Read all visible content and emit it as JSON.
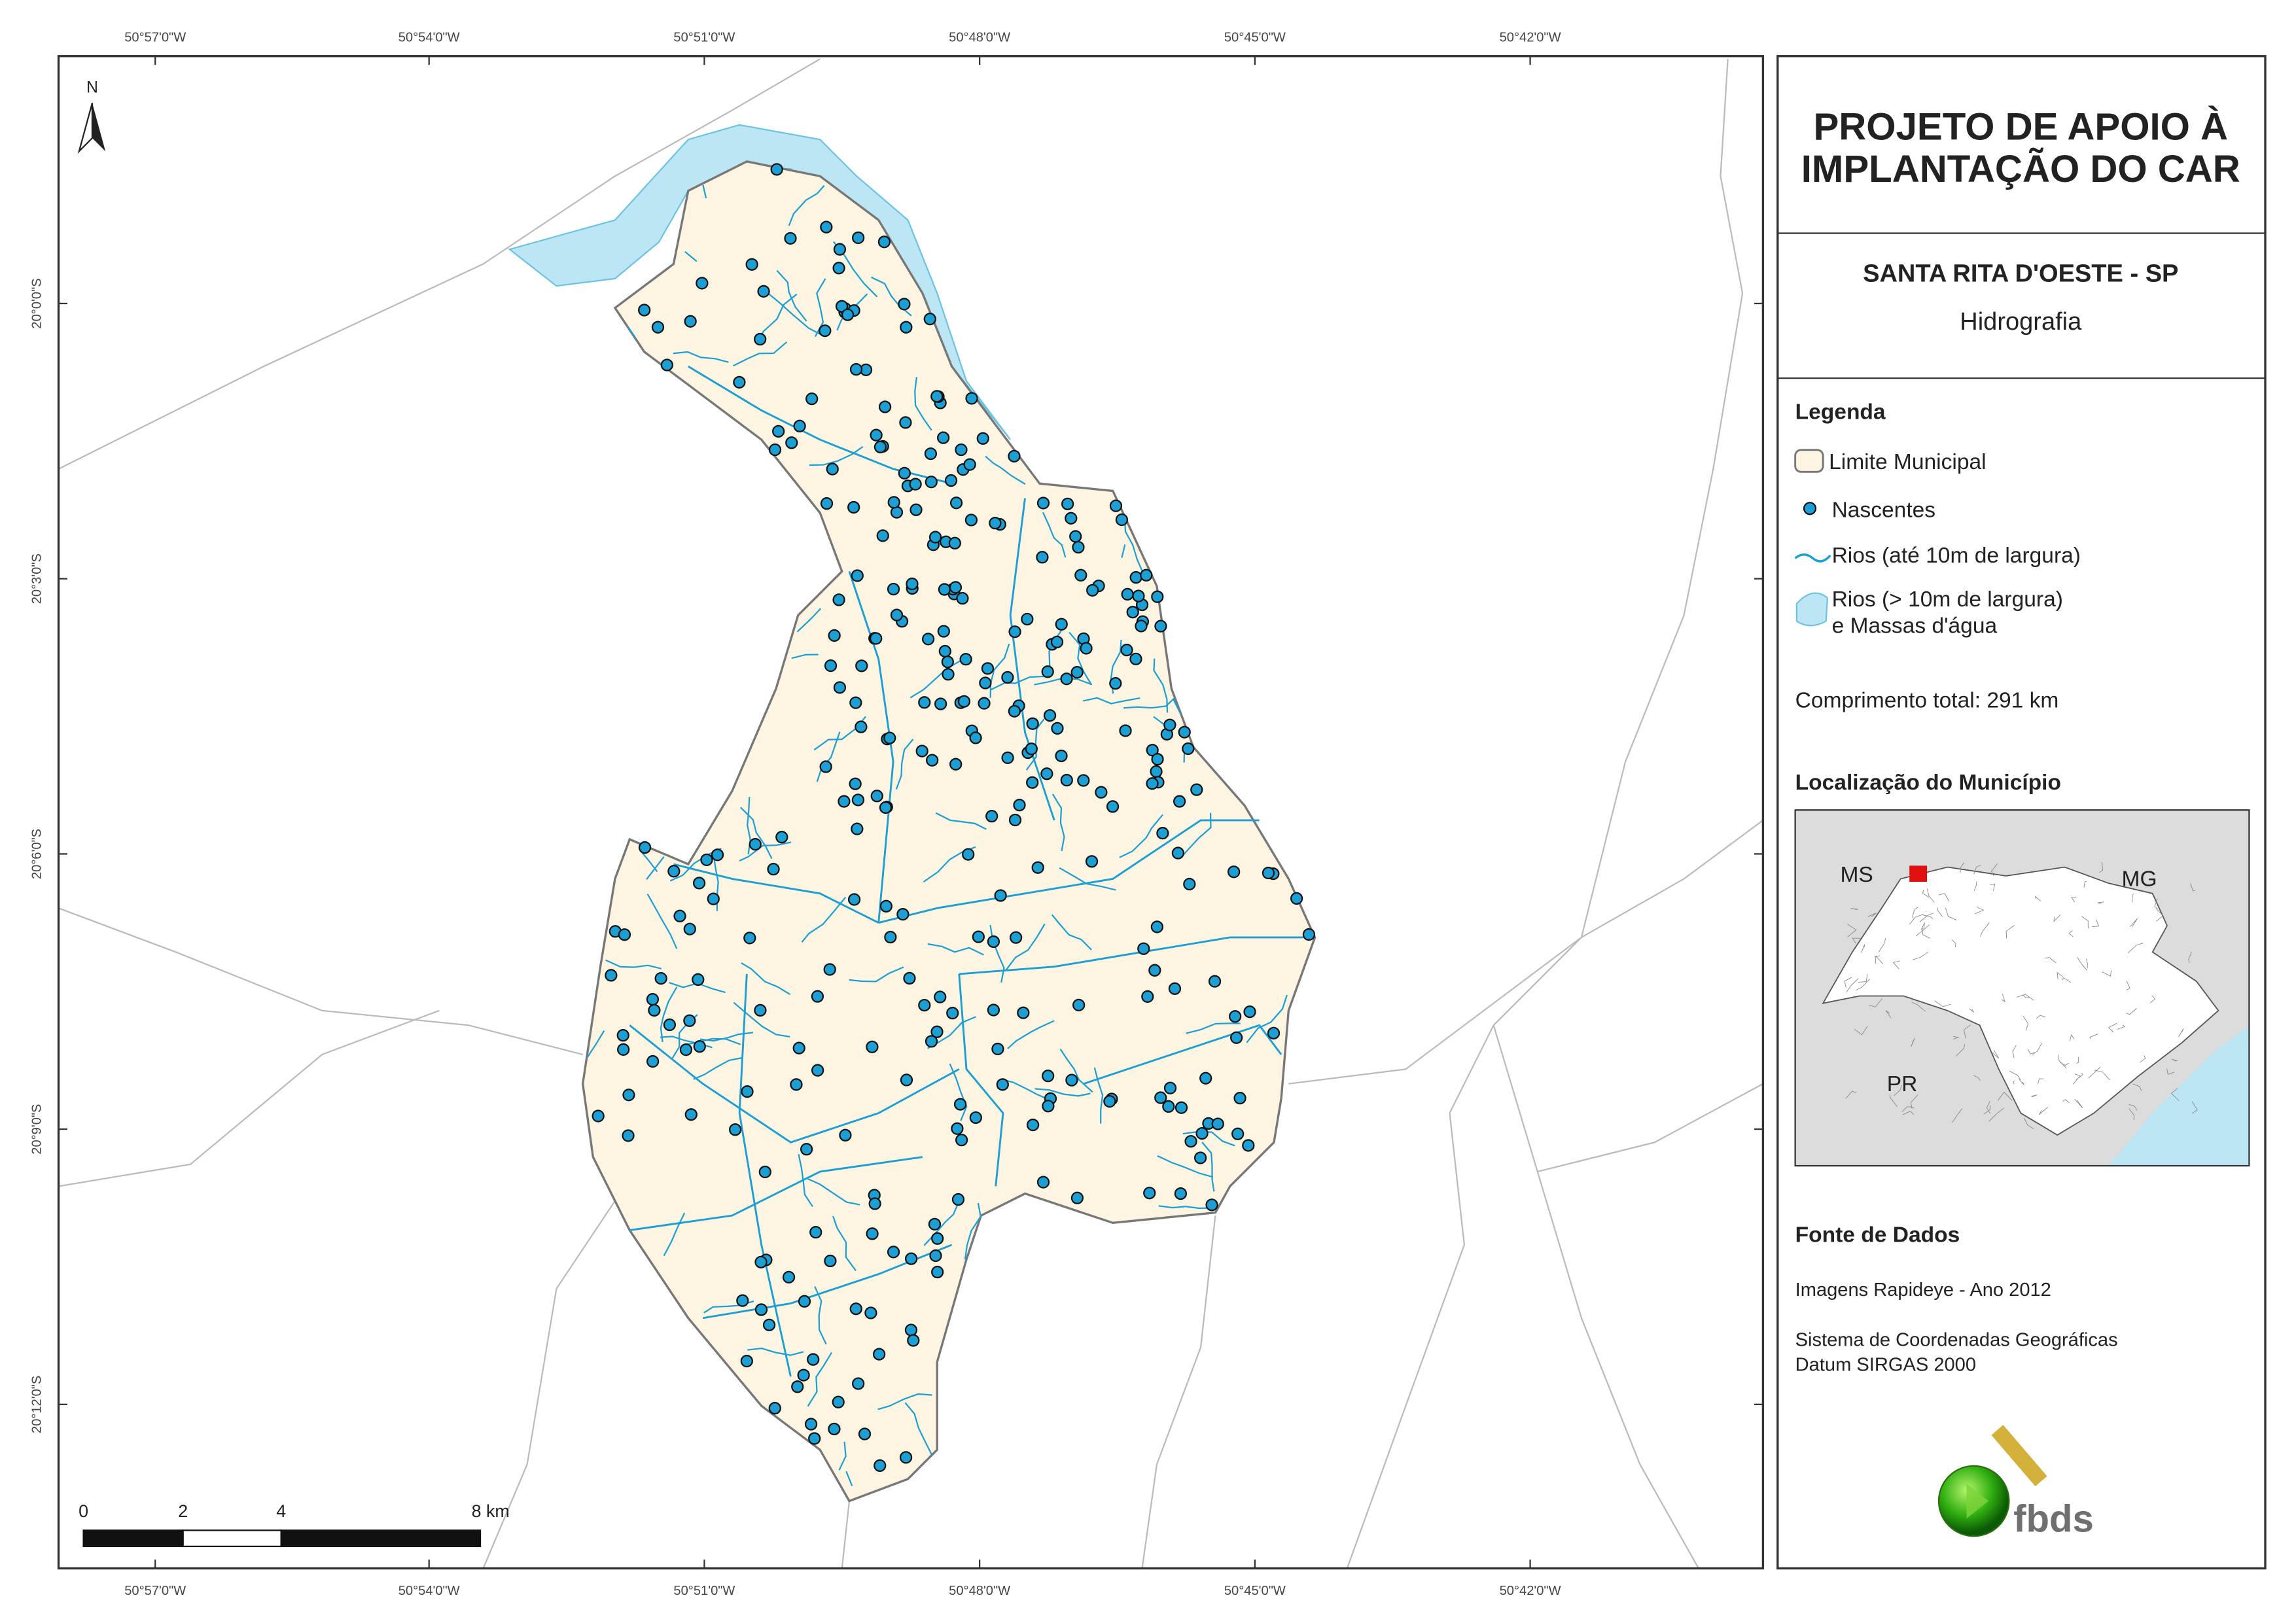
{
  "map": {
    "north": "N",
    "lon_labels": [
      "50°57'0\"W",
      "50°54'0\"W",
      "50°51'0\"W",
      "50°48'0\"W",
      "50°45'0\"W",
      "50°42'0\"W"
    ],
    "lat_labels": [
      "20°0'0\"S",
      "20°3'0\"S",
      "20°6'0\"S",
      "20°9'0\"S",
      "20°12'0\"S"
    ],
    "scale_labels": [
      "0",
      "2",
      "4",
      "8 km"
    ]
  },
  "panel": {
    "title_lines": [
      "PROJETO DE APOIO À",
      "IMPLANTAÇÃO DO CAR"
    ],
    "municipality": "SANTA RITA D'OESTE - SP",
    "theme": "Hidrografia",
    "legend": {
      "title": "Legenda",
      "boundary": "Limite Municipal",
      "springs": "Nascentes",
      "rivers_small": "Rios (até 10m de largura)",
      "rivers_large": [
        "Rios (> 10m de largura)",
        "e Massas d'água"
      ],
      "length": "Comprimento total: 291 km"
    },
    "location": {
      "title": "Localização do Município",
      "labels": [
        "MS",
        "MG",
        "PR"
      ]
    },
    "sources": {
      "title": "Fonte de Dados",
      "lines": [
        "Imagens Rapideye - Ano 2012",
        "Sistema de Coordenadas Geográficas",
        "Datum SIRGAS 2000"
      ]
    },
    "logo": "fbds"
  }
}
